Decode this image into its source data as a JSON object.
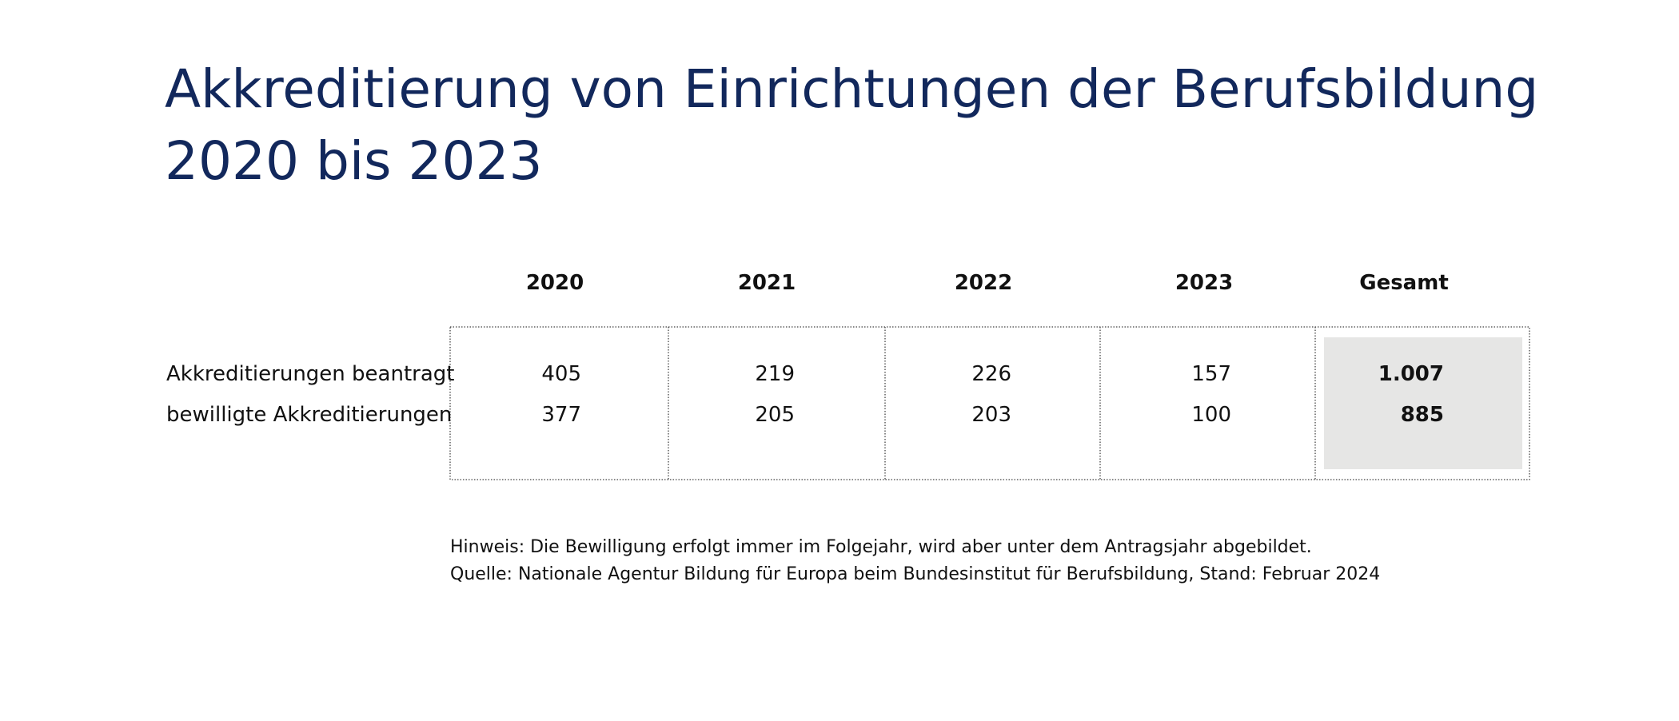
{
  "header": {
    "title_lines": [
      "Akkreditierung von Einrichtungen der Berufsbildung",
      "2020 bis 2023"
    ]
  },
  "table": {
    "columns": [
      "2020",
      "2021",
      "2022",
      "2023",
      "Gesamt"
    ],
    "rows": [
      {
        "label": "Akkreditierungen beantragt",
        "cells": [
          "405",
          "219",
          "226",
          "157",
          "1.007"
        ]
      },
      {
        "label": "bewilligte Akkreditierungen",
        "cells": [
          "377",
          "205",
          "203",
          "100",
          "885"
        ]
      }
    ]
  },
  "notes": [
    "Hinweis: Die Bewilligung erfolgt immer im Folgejahr, wird aber unter dem Antragsjahr abgebildet.",
    "Quelle: Nationale Agentur Bildung für Europa beim Bundesinstitut für Berufsbildung, Stand: Februar 2024"
  ]
}
